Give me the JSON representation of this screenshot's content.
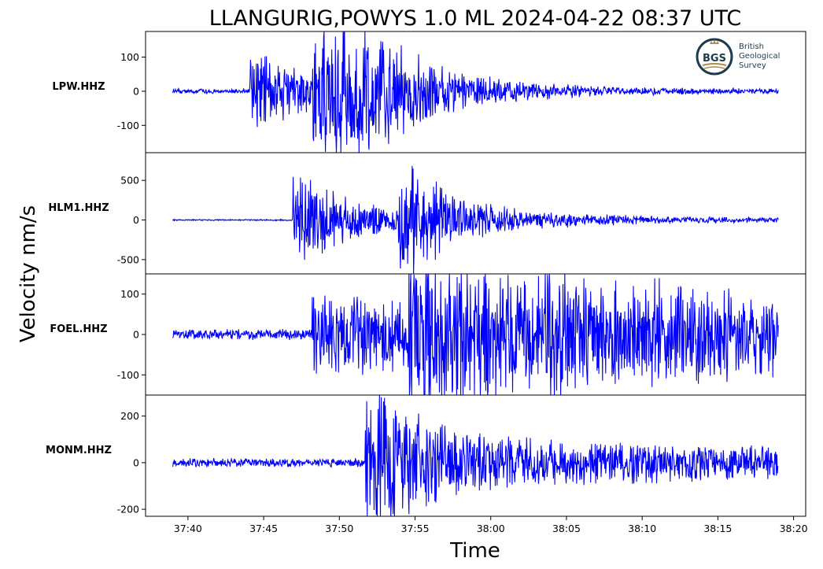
{
  "chart_data": {
    "type": "line",
    "title": "LLANGURIG,POWYS 1.0 ML   2024-04-22 08:37 UTC",
    "xlabel": "Time",
    "ylabel": "Velocity nm/s",
    "line_color": "#0000ff",
    "x_range_seconds": [
      37.2,
      80.8
    ],
    "x_ticks": [
      {
        "label": "37:40",
        "value": 40
      },
      {
        "label": "37:45",
        "value": 45
      },
      {
        "label": "37:50",
        "value": 50
      },
      {
        "label": "37:55",
        "value": 55
      },
      {
        "label": "38:00",
        "value": 60
      },
      {
        "label": "38:05",
        "value": 65
      },
      {
        "label": "38:10",
        "value": 70
      },
      {
        "label": "38:15",
        "value": 75
      },
      {
        "label": "38:20",
        "value": 80
      }
    ],
    "panels": [
      {
        "station": "LPW.HHZ",
        "ylim": [
          -180,
          175
        ],
        "yticks": [
          {
            "v": 100,
            "label": "100"
          },
          {
            "v": 0,
            "label": "0"
          },
          {
            "v": -100,
            "label": "-100"
          }
        ],
        "waveform": {
          "start": 39,
          "end": 79,
          "noise": 7,
          "events": [
            {
              "t": 44.1,
              "peak": 120,
              "decay": 6
            },
            {
              "t": 48.2,
              "peak": 160,
              "decay": 5
            },
            {
              "t": 49.8,
              "peak": 150,
              "decay": 4
            }
          ]
        }
      },
      {
        "station": "HLM1.HHZ",
        "ylim": [
          -680,
          850
        ],
        "yticks": [
          {
            "v": 500,
            "label": "500"
          },
          {
            "v": 0,
            "label": "0"
          },
          {
            "v": -500,
            "label": "-500"
          }
        ],
        "waveform": {
          "start": 39,
          "end": 79,
          "noise": 8,
          "events": [
            {
              "t": 46.9,
              "peak": 600,
              "decay": 3
            },
            {
              "t": 47.3,
              "peak": 120,
              "decay": 14
            },
            {
              "t": 53.9,
              "peak": 830,
              "decay": 2.5
            },
            {
              "t": 54.5,
              "peak": 110,
              "decay": 10
            }
          ]
        }
      },
      {
        "station": "FOEL.HHZ",
        "ylim": [
          -150,
          150
        ],
        "yticks": [
          {
            "v": 100,
            "label": "100"
          },
          {
            "v": 0,
            "label": "0"
          },
          {
            "v": -100,
            "label": "-100"
          }
        ],
        "waveform": {
          "start": 39,
          "end": 79,
          "noise": 13,
          "events": [
            {
              "t": 48.2,
              "peak": 95,
              "decay": 30
            },
            {
              "t": 54.5,
              "peak": 140,
              "decay": 25
            }
          ]
        }
      },
      {
        "station": "MONM.HHZ",
        "ylim": [
          -230,
          290
        ],
        "yticks": [
          {
            "v": 200,
            "label": "200"
          },
          {
            "v": 0,
            "label": "0"
          },
          {
            "v": -200,
            "label": "-200"
          }
        ],
        "waveform": {
          "start": 39,
          "end": 79,
          "noise": 18,
          "events": [
            {
              "t": 51.7,
              "peak": 275,
              "decay": 3
            },
            {
              "t": 52.5,
              "peak": 120,
              "decay": 30
            }
          ]
        }
      }
    ]
  },
  "logo": {
    "initials": "BGS",
    "lines": [
      "British",
      "Geological",
      "Survey"
    ],
    "colors": {
      "ring": "#1d3b4f",
      "gold": "#b08b45",
      "text": "#1d3b4f"
    }
  }
}
